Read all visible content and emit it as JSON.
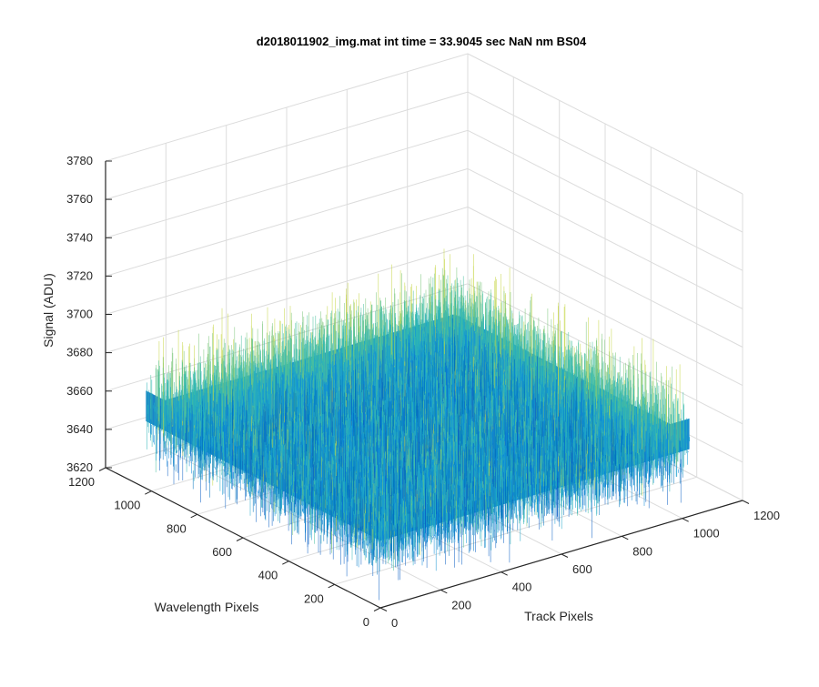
{
  "chart_data": {
    "type": "surface",
    "title": "d2018011902_img.mat int time = 33.9045 sec  NaN nm BS04",
    "xlabel": "Track Pixels",
    "ylabel": "Wavelength Pixels",
    "zlabel": "Signal (ADU)",
    "xlim": [
      0,
      1200
    ],
    "ylim": [
      0,
      1200
    ],
    "zlim": [
      3620,
      3780
    ],
    "x_ticks": [
      "0",
      "200",
      "400",
      "600",
      "800",
      "1000",
      "1200"
    ],
    "y_ticks": [
      "0",
      "200",
      "400",
      "600",
      "800",
      "1000",
      "1200"
    ],
    "z_ticks": [
      "3620",
      "3640",
      "3660",
      "3680",
      "3700",
      "3720",
      "3740",
      "3760",
      "3780"
    ],
    "surface": {
      "x_range": [
        0,
        1024
      ],
      "y_range": [
        0,
        1024
      ],
      "mean_signal": 3663,
      "noise_amplitude": 25,
      "colormap": "parula"
    },
    "grid": true,
    "colors": {
      "low": "#0072bd",
      "mid": "#1fa6c9",
      "high": "#c6d645",
      "axis": "#262626",
      "grid": "#dcdcdc"
    }
  }
}
